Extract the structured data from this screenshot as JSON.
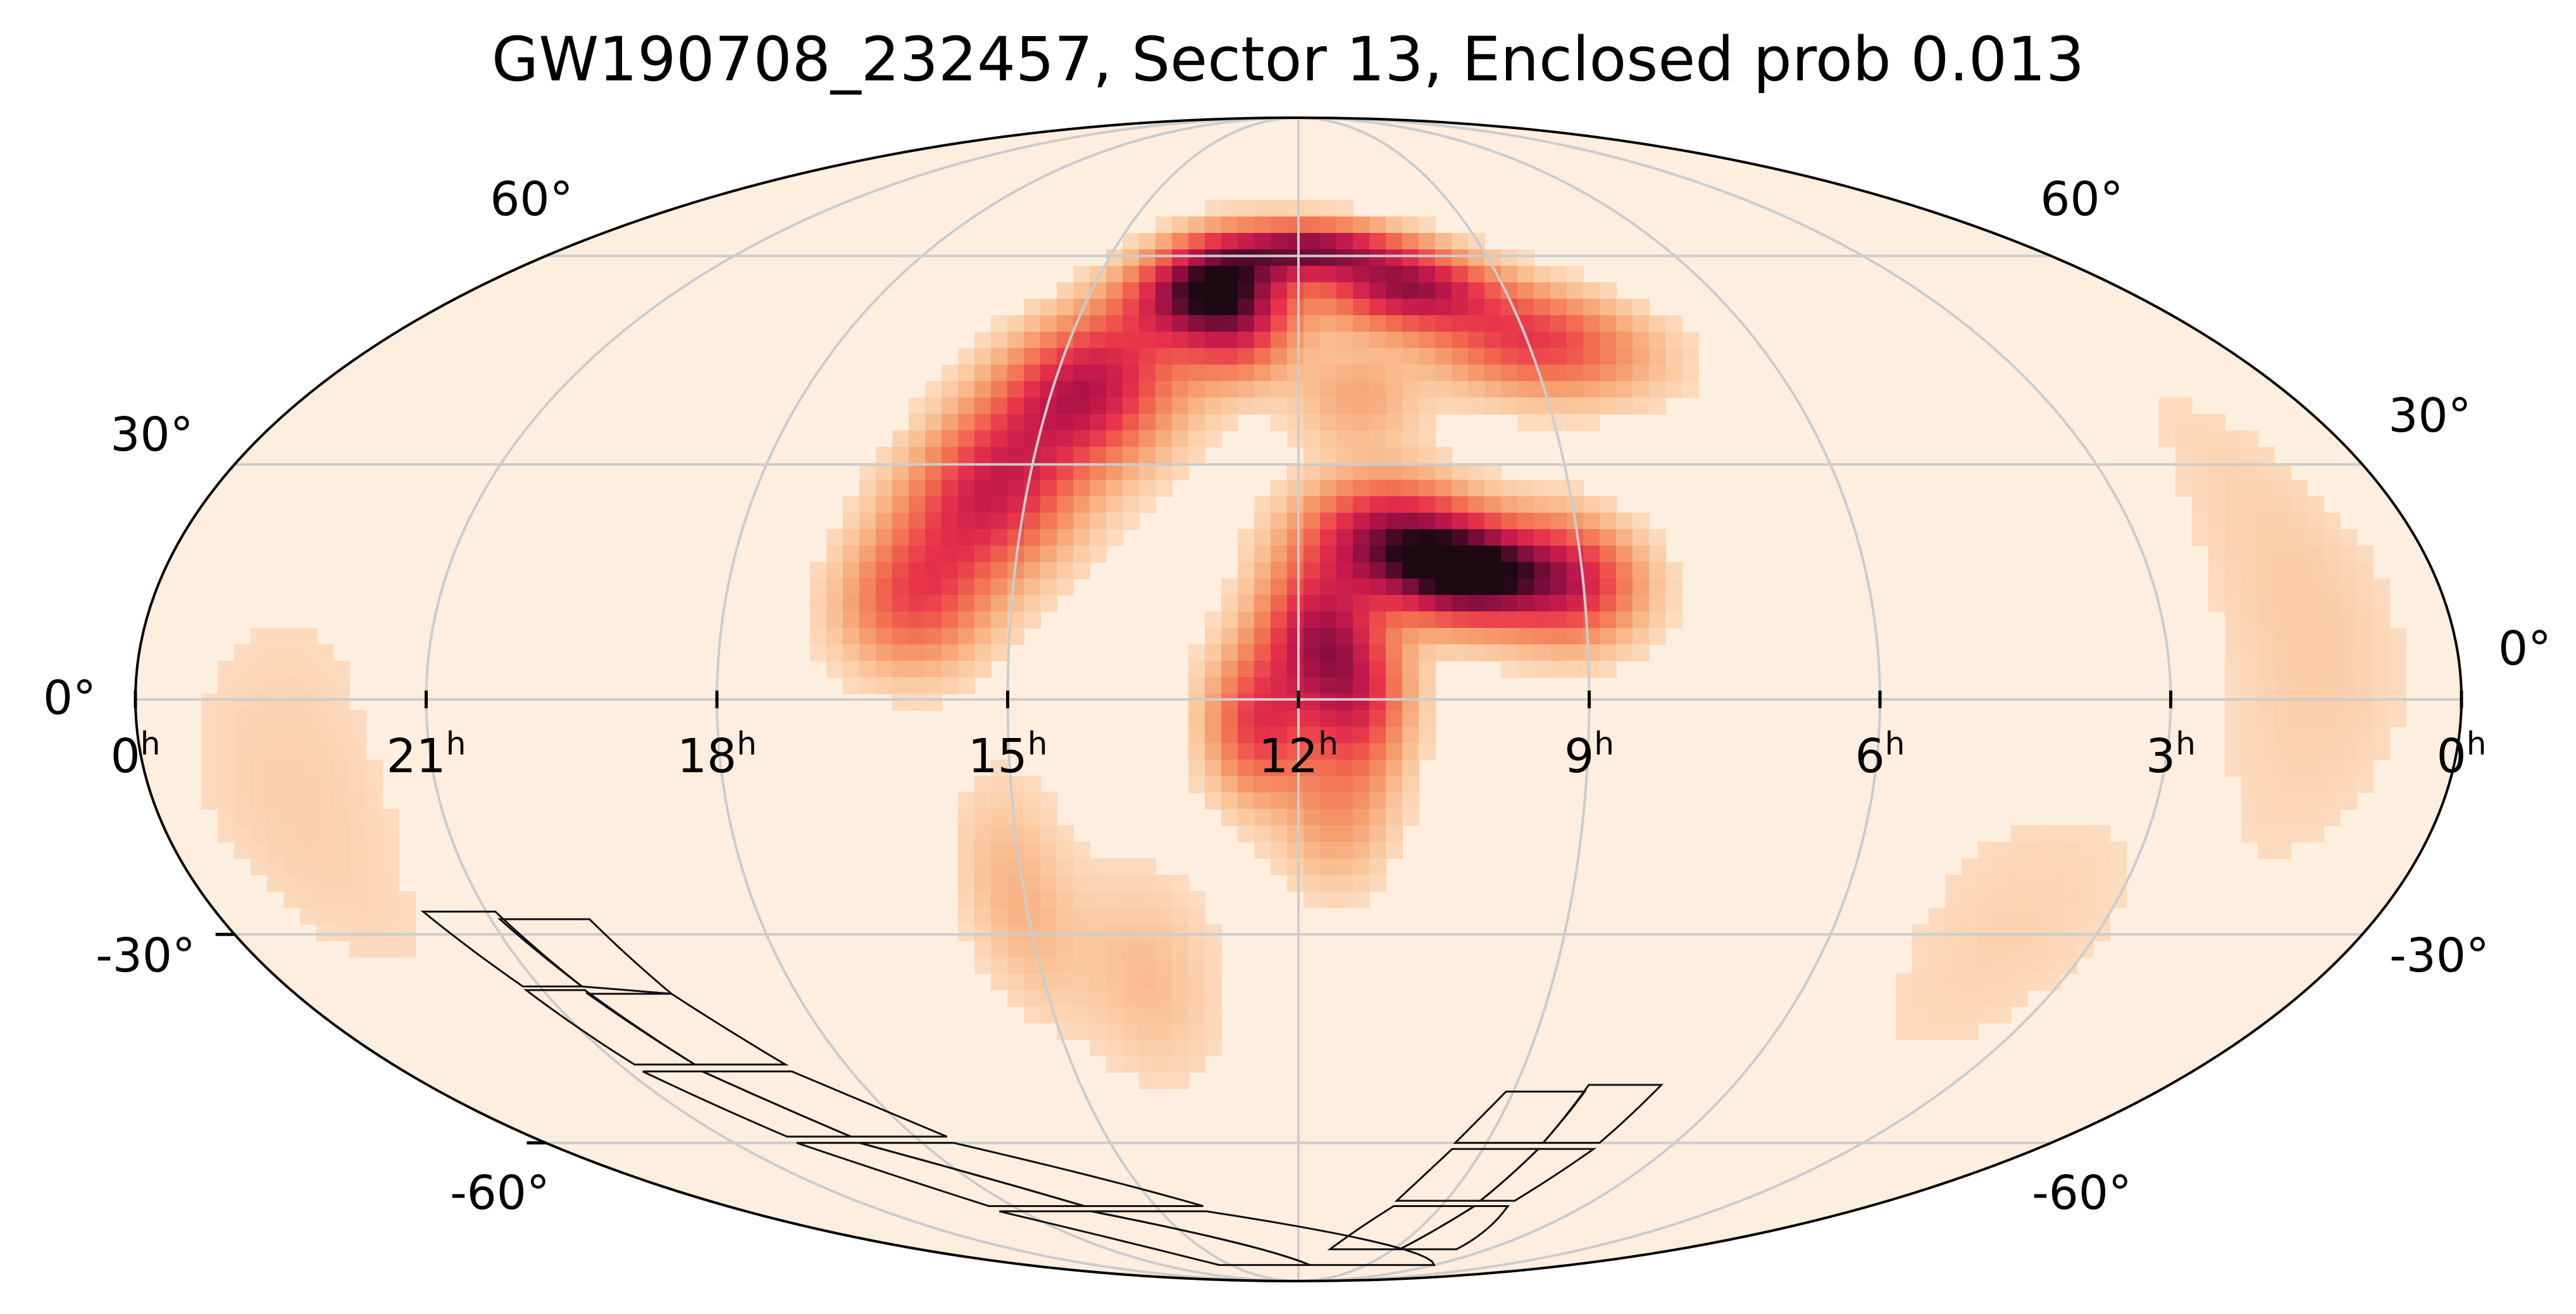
{
  "chart_data": {
    "type": "heatmap",
    "projection": "mollweide",
    "title": "GW190708_232457, Sector 13, Enclosed prob 0.013",
    "ra_ticks": [
      {
        "ra_hours": 0,
        "label": "0",
        "sup": "h"
      },
      {
        "ra_hours": 21,
        "label": "21",
        "sup": "h"
      },
      {
        "ra_hours": 18,
        "label": "18",
        "sup": "h"
      },
      {
        "ra_hours": 15,
        "label": "15",
        "sup": "h"
      },
      {
        "ra_hours": 12,
        "label": "12",
        "sup": "h"
      },
      {
        "ra_hours": 9,
        "label": "9",
        "sup": "h"
      },
      {
        "ra_hours": 6,
        "label": "6",
        "sup": "h"
      },
      {
        "ra_hours": 3,
        "label": "3",
        "sup": "h"
      },
      {
        "ra_hours": 0,
        "label": "0",
        "sup": "h"
      }
    ],
    "dec_ticks": [
      {
        "dec": 60,
        "label": "60°"
      },
      {
        "dec": 30,
        "label": "30°"
      },
      {
        "dec": 0,
        "label": "0°"
      },
      {
        "dec": -30,
        "label": "-30°"
      },
      {
        "dec": -60,
        "label": "-60°"
      }
    ],
    "ra_range_hours": [
      0,
      24
    ],
    "dec_range": [
      -90,
      90
    ],
    "grid": true,
    "colormap": [
      "#fdeee0",
      "#fbc9a0",
      "#f59a6a",
      "#f26a4f",
      "#e8324b",
      "#c0174c",
      "#7a0d3a",
      "#1e0812"
    ],
    "probability_regions": [
      {
        "ra_hours": 13.3,
        "dec": 55,
        "peak": 1.0,
        "sigma_ra_hours": 0.7,
        "sigma_dec": 5
      },
      {
        "ra_hours": 14.6,
        "dec": 40,
        "peak": 0.65,
        "sigma_ra_hours": 0.7,
        "sigma_dec": 7
      },
      {
        "ra_hours": 15.4,
        "dec": 26,
        "peak": 0.55,
        "sigma_ra_hours": 0.6,
        "sigma_dec": 7
      },
      {
        "ra_hours": 16.0,
        "dec": 13,
        "peak": 0.4,
        "sigma_ra_hours": 0.5,
        "sigma_dec": 6
      },
      {
        "ra_hours": 11.8,
        "dec": 61,
        "peak": 0.75,
        "sigma_ra_hours": 0.9,
        "sigma_dec": 3
      },
      {
        "ra_hours": 10.4,
        "dec": 55,
        "peak": 0.7,
        "sigma_ra_hours": 0.8,
        "sigma_dec": 4
      },
      {
        "ra_hours": 8.9,
        "dec": 47,
        "peak": 0.45,
        "sigma_ra_hours": 0.9,
        "sigma_dec": 5
      },
      {
        "ra_hours": 12.8,
        "dec": 48,
        "peak": 0.35,
        "sigma_ra_hours": 0.5,
        "sigma_dec": 5
      },
      {
        "ra_hours": 11.3,
        "dec": 39,
        "peak": 0.15,
        "sigma_ra_hours": 0.5,
        "sigma_dec": 5
      },
      {
        "ra_hours": 10.2,
        "dec": 16,
        "peak": 1.0,
        "sigma_ra_hours": 0.5,
        "sigma_dec": 4
      },
      {
        "ra_hours": 11.0,
        "dec": 20,
        "peak": 0.75,
        "sigma_ra_hours": 0.6,
        "sigma_dec": 5
      },
      {
        "ra_hours": 9.2,
        "dec": 15,
        "peak": 0.6,
        "sigma_ra_hours": 0.5,
        "sigma_dec": 5
      },
      {
        "ra_hours": 11.8,
        "dec": 8,
        "peak": 0.6,
        "sigma_ra_hours": 0.4,
        "sigma_dec": 6
      },
      {
        "ra_hours": 12.4,
        "dec": -3,
        "peak": 0.45,
        "sigma_ra_hours": 0.35,
        "sigma_dec": 6
      },
      {
        "ra_hours": 11.4,
        "dec": 0,
        "peak": 0.45,
        "sigma_ra_hours": 0.35,
        "sigma_dec": 6
      },
      {
        "ra_hours": 11.6,
        "dec": -13,
        "peak": 0.2,
        "sigma_ra_hours": 0.4,
        "sigma_dec": 7
      },
      {
        "ra_hours": 15.1,
        "dec": -25,
        "peak": 0.12,
        "sigma_ra_hours": 0.4,
        "sigma_dec": 10
      },
      {
        "ra_hours": 13.8,
        "dec": -36,
        "peak": 0.1,
        "sigma_ra_hours": 0.6,
        "sigma_dec": 10
      },
      {
        "ra_hours": 1.5,
        "dec": 10,
        "peak": 0.07,
        "sigma_ra_hours": 0.7,
        "sigma_dec": 22
      },
      {
        "ra_hours": 22.5,
        "dec": -12,
        "peak": 0.06,
        "sigma_ra_hours": 0.8,
        "sigma_dec": 18
      },
      {
        "ra_hours": 4.0,
        "dec": -30,
        "peak": 0.05,
        "sigma_ra_hours": 1.0,
        "sigma_dec": 15
      }
    ],
    "footprints": [
      {
        "ra_hours": [
          21.7,
          20.9,
          20.5,
          21.2
        ],
        "dec": [
          -27,
          -27,
          -37,
          -37
        ]
      },
      {
        "ra_hours": [
          20.9,
          19.9,
          19.5,
          20.5
        ],
        "dec": [
          -28,
          -28,
          -38,
          -37
        ]
      },
      {
        "ra_hours": [
          21.2,
          20.5,
          20.0,
          20.8
        ],
        "dec": [
          -37.5,
          -37.5,
          -48,
          -48
        ]
      },
      {
        "ra_hours": [
          20.5,
          19.5,
          18.8,
          20.0
        ],
        "dec": [
          -38,
          -38,
          -48,
          -48
        ]
      },
      {
        "ra_hours": [
          20.8,
          20.0,
          19.0,
          20.0
        ],
        "dec": [
          -49,
          -49,
          -59,
          -59
        ]
      },
      {
        "ra_hours": [
          20.0,
          18.8,
          17.5,
          19.0
        ],
        "dec": [
          -49,
          -49,
          -59,
          -59
        ]
      },
      {
        "ra_hours": [
          20.0,
          19.0,
          16.5,
          18.5
        ],
        "dec": [
          -60,
          -60,
          -71,
          -71
        ]
      },
      {
        "ra_hours": [
          19.0,
          17.5,
          14.0,
          16.5
        ],
        "dec": [
          -60,
          -60,
          -71,
          -71
        ]
      },
      {
        "ra_hours": [
          18.5,
          16.5,
          11.5,
          15.5
        ],
        "dec": [
          -72,
          -72,
          -84,
          -84
        ]
      },
      {
        "ra_hours": [
          16.5,
          14.0,
          6.0,
          11.5
        ],
        "dec": [
          -72,
          -72,
          -84,
          -84
        ]
      },
      {
        "ra_hours": [
          9.1,
          8.0,
          8.1,
          9.5
        ],
        "dec": [
          -52,
          -52,
          -60,
          -60
        ]
      },
      {
        "ra_hours": [
          8.0,
          7.0,
          7.2,
          8.1
        ],
        "dec": [
          -51,
          -51,
          -60,
          -60
        ]
      },
      {
        "ra_hours": [
          9.5,
          8.1,
          8.3,
          10.0
        ],
        "dec": [
          -61,
          -61,
          -70,
          -70
        ]
      },
      {
        "ra_hours": [
          8.1,
          7.2,
          7.6,
          8.3
        ],
        "dec": [
          -61,
          -61,
          -70,
          -70
        ]
      },
      {
        "ra_hours": [
          10.0,
          8.3,
          8.8,
          11.0
        ],
        "dec": [
          -71,
          -71,
          -80,
          -80
        ]
      },
      {
        "ra_hours": [
          8.3,
          7.6,
          7.0,
          8.8
        ],
        "dec": [
          -71,
          -71,
          -80,
          -80
        ]
      }
    ]
  }
}
